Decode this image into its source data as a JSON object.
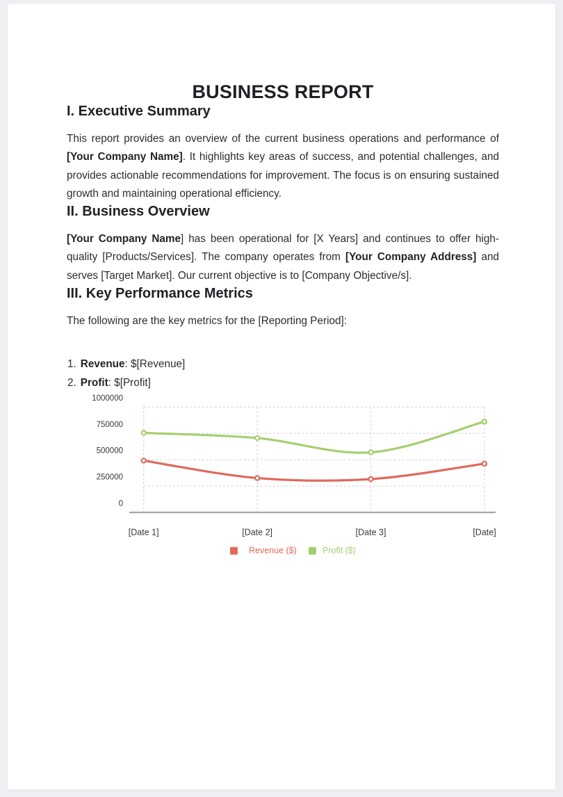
{
  "page": {
    "title": "BUSINESS REPORT"
  },
  "sections": [
    {
      "heading": "I. Executive Summary",
      "paragraph": [
        {
          "t": "This report provides an overview of the current business operations and performance of ",
          "b": false
        },
        {
          "t": "[Your Company Name]",
          "b": true
        },
        {
          "t": ". It highlights key areas of success, and potential challenges, and provides actionable recommendations for improvement. The focus is on ensuring sustained growth and maintaining operational efficiency.",
          "b": false
        }
      ]
    },
    {
      "heading": "II. Business Overview",
      "paragraph": [
        {
          "t": "[Your Company Name",
          "b": true
        },
        {
          "t": "] has been operational for [X Years] and continues to offer high-quality [Products/Services]. The company operates from ",
          "b": false
        },
        {
          "t": "[Your Company Address]",
          "b": true
        },
        {
          "t": " and serves [Target Market]. Our current objective is to [Company Objective/s].",
          "b": false
        }
      ]
    },
    {
      "heading": "III. Key Performance Metrics",
      "paragraph": [
        {
          "t": "The following are the key metrics for the [Reporting Period]:",
          "b": false
        }
      ],
      "list": [
        {
          "num": "1.",
          "segments": [
            {
              "t": "Revenue",
              "b": true
            },
            {
              "t": ": $[Revenue]",
              "b": false
            }
          ]
        },
        {
          "num": "2.",
          "segments": [
            {
              "t": "Profit",
              "b": true
            },
            {
              "t": ": $[Profit]",
              "b": false
            }
          ]
        }
      ]
    }
  ],
  "chart_data": {
    "type": "line",
    "categories": [
      "[Date 1]",
      "[Date 2]",
      "[Date 3]",
      "[Date]"
    ],
    "series": [
      {
        "name": "Revenue ($)",
        "color": "#df6a5c",
        "values": [
          420000,
          250000,
          240000,
          390000
        ]
      },
      {
        "name": "Profit ($)",
        "color": "#a4cf6e",
        "values": [
          690000,
          640000,
          500000,
          800000
        ]
      }
    ],
    "title": "",
    "xlabel": "",
    "ylabel": "",
    "ylim": [
      0,
      1000000
    ],
    "yticks": [
      0,
      250000,
      500000,
      750000,
      1000000
    ],
    "grid": "dashed",
    "legend_position": "bottom",
    "marker": "open-circle",
    "smooth": true,
    "colors": {
      "gridline": "#d9d9d9",
      "axis": "#9b9b9b",
      "tick_text": "#36383c"
    }
  }
}
